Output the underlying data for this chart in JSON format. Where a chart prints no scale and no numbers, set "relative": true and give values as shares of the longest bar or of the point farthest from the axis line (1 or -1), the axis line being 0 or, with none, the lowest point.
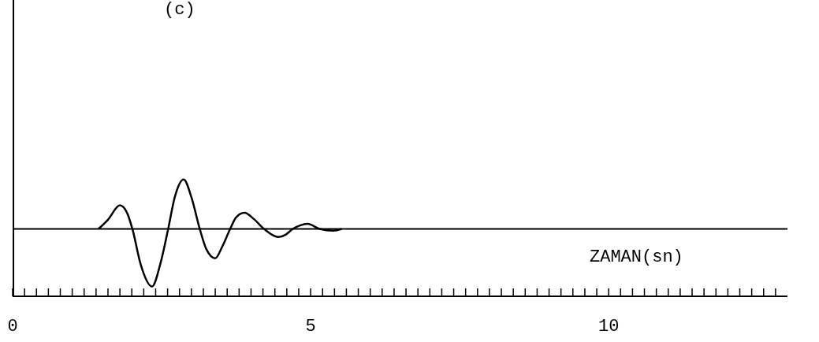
{
  "chart_data": {
    "type": "line",
    "relative": true,
    "xlabel": "ZAMAN(sn)",
    "annotations": [
      "(c)"
    ],
    "color": "#000000",
    "marker": "none",
    "line_style": "solid",
    "grid": false,
    "legend": false,
    "x": [
      1.44,
      1.6,
      1.8,
      1.92,
      2.01,
      2.15,
      2.34,
      2.48,
      2.61,
      2.72,
      2.87,
      3.0,
      3.14,
      3.25,
      3.4,
      3.52,
      3.65,
      3.75,
      3.89,
      4.05,
      4.22,
      4.46,
      4.58,
      4.7,
      4.82,
      4.95,
      5.15,
      5.38,
      5.52
    ],
    "values": [
      0,
      0.16,
      0.41,
      0.28,
      0,
      -0.62,
      -1,
      -0.6,
      0,
      0.55,
      0.86,
      0.55,
      0,
      -0.35,
      -0.51,
      -0.3,
      0,
      0.2,
      0.28,
      0.17,
      0,
      -0.14,
      -0.1,
      0,
      0.06,
      0.09,
      0,
      -0.03,
      0
    ],
    "ref_lines": [
      {
        "axis": "y",
        "value": 0
      }
    ],
    "xlim": [
      0,
      13.0
    ],
    "xticks": [
      0,
      {
        "value": 0.2,
        "label": null
      },
      {
        "value": 0.4,
        "label": null
      },
      {
        "value": 0.6,
        "label": null
      },
      {
        "value": 0.8,
        "label": null
      },
      {
        "value": 1,
        "label": null
      },
      {
        "value": 1.2,
        "label": null
      },
      {
        "value": 1.4,
        "label": null
      },
      {
        "value": 1.6,
        "label": null
      },
      {
        "value": 1.8,
        "label": null
      },
      {
        "value": 2,
        "label": null
      },
      {
        "value": 2.2,
        "label": null
      },
      {
        "value": 2.4,
        "label": null
      },
      {
        "value": 2.6,
        "label": null
      },
      {
        "value": 2.8,
        "label": null
      },
      {
        "value": 3,
        "label": null
      },
      {
        "value": 3.2,
        "label": null
      },
      {
        "value": 3.4,
        "label": null
      },
      {
        "value": 3.6,
        "label": null
      },
      {
        "value": 3.8,
        "label": null
      },
      {
        "value": 4,
        "label": null
      },
      {
        "value": 4.2,
        "label": null
      },
      {
        "value": 4.4,
        "label": null
      },
      {
        "value": 4.6,
        "label": null
      },
      {
        "value": 4.8,
        "label": null
      },
      5,
      {
        "value": 5.2,
        "label": null
      },
      {
        "value": 5.4,
        "label": null
      },
      {
        "value": 5.6,
        "label": null
      },
      {
        "value": 5.8,
        "label": null
      },
      {
        "value": 6,
        "label": null
      },
      {
        "value": 6.2,
        "label": null
      },
      {
        "value": 6.4,
        "label": null
      },
      {
        "value": 6.6,
        "label": null
      },
      {
        "value": 6.8,
        "label": null
      },
      {
        "value": 7,
        "label": null
      },
      {
        "value": 7.2,
        "label": null
      },
      {
        "value": 7.4,
        "label": null
      },
      {
        "value": 7.6,
        "label": null
      },
      {
        "value": 7.8,
        "label": null
      },
      {
        "value": 8,
        "label": null
      },
      {
        "value": 8.2,
        "label": null
      },
      {
        "value": 8.4,
        "label": null
      },
      {
        "value": 8.6,
        "label": null
      },
      {
        "value": 8.8,
        "label": null
      },
      {
        "value": 9,
        "label": null
      },
      {
        "value": 9.2,
        "label": null
      },
      {
        "value": 9.4,
        "label": null
      },
      {
        "value": 9.6,
        "label": null
      },
      {
        "value": 9.8,
        "label": null
      },
      10,
      {
        "value": 10.2,
        "label": null
      },
      {
        "value": 10.4,
        "label": null
      },
      {
        "value": 10.6,
        "label": null
      },
      {
        "value": 10.8,
        "label": null
      },
      {
        "value": 11,
        "label": null
      },
      {
        "value": 11.2,
        "label": null
      },
      {
        "value": 11.4,
        "label": null
      },
      {
        "value": 11.6,
        "label": null
      },
      {
        "value": 11.8,
        "label": null
      },
      {
        "value": 12,
        "label": null
      },
      {
        "value": 12.2,
        "label": null
      },
      {
        "value": 12.4,
        "label": null
      },
      {
        "value": 12.6,
        "label": null
      },
      {
        "value": 12.8,
        "label": null
      }
    ]
  }
}
